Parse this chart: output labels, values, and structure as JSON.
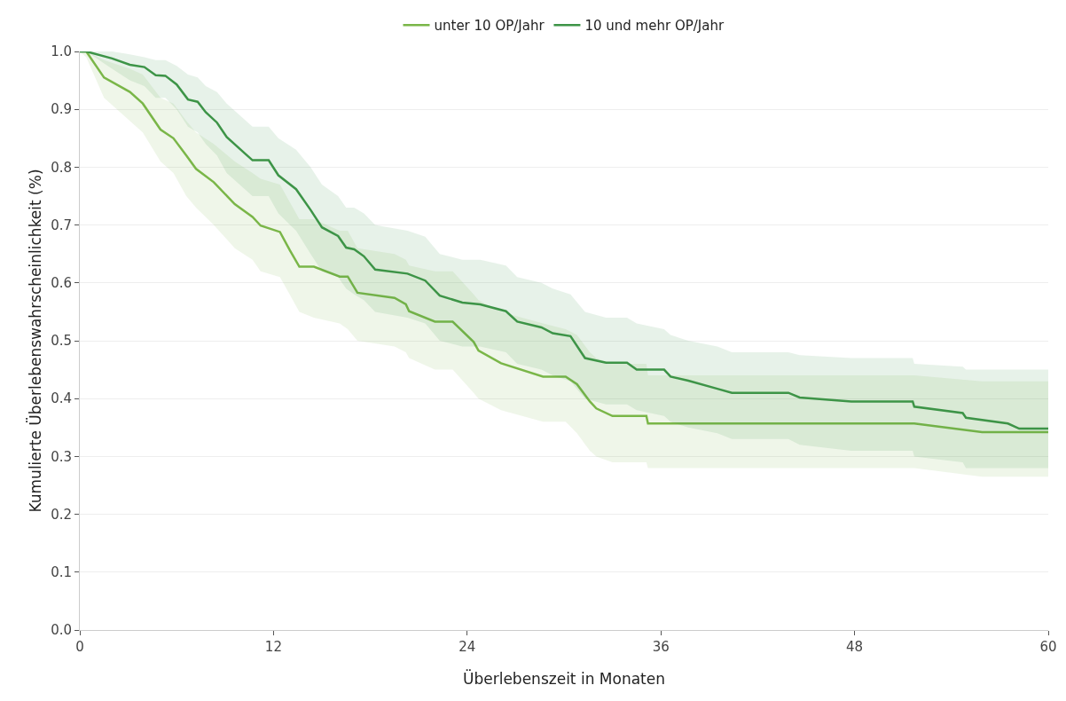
{
  "chart_data": {
    "type": "line",
    "xlabel": "Überlebenszeit in Monaten",
    "ylabel": "Kumulierte Überlebenswahrscheinlichkeit (%)",
    "xlim": [
      0,
      60
    ],
    "xticks": [
      0,
      12,
      24,
      36,
      48,
      60
    ],
    "ylim": [
      0,
      1.0
    ],
    "yticks": [
      {
        "value": 0,
        "label": "0.0"
      },
      {
        "value": 0.1,
        "label": "0.1"
      },
      {
        "value": 0.2,
        "label": "0.2"
      },
      {
        "value": 0.3,
        "label": "0.3"
      },
      {
        "value": 0.4,
        "label": "0.4"
      },
      {
        "value": 0.5,
        "label": "0.5"
      },
      {
        "value": 0.6,
        "label": "0.6"
      },
      {
        "value": 0.7,
        "label": "0.7"
      },
      {
        "value": 0.8,
        "label": "0.8"
      },
      {
        "value": 0.9,
        "label": "0.9"
      },
      {
        "value": 1.0,
        "label": "1.0"
      }
    ],
    "grid": "y",
    "legend": "top",
    "marker": "none",
    "line_style": "solid",
    "series": [
      {
        "name": "unter 10 OP/Jahr",
        "color": "#7ab648",
        "x": [
          0,
          0.4,
          1.5,
          3.1,
          3.9,
          5.0,
          5.8,
          6.6,
          7.2,
          8.3,
          9.6,
          10.7,
          11.2,
          12.4,
          13.0,
          13.6,
          14.5,
          16.1,
          16.6,
          17.2,
          19.5,
          20.2,
          20.4,
          22.0,
          23.1,
          24.4,
          24.7,
          26.1,
          28.7,
          30.1,
          30.8,
          31.6,
          32.0,
          33.0,
          35.1,
          35.2,
          51.7,
          55.9,
          60
        ],
        "values": [
          1.0,
          1.0,
          0.955,
          0.93,
          0.91,
          0.865,
          0.85,
          0.82,
          0.797,
          0.774,
          0.736,
          0.714,
          0.699,
          0.688,
          0.657,
          0.628,
          0.628,
          0.611,
          0.611,
          0.583,
          0.574,
          0.563,
          0.551,
          0.533,
          0.533,
          0.498,
          0.483,
          0.461,
          0.438,
          0.438,
          0.425,
          0.395,
          0.383,
          0.37,
          0.37,
          0.357,
          0.357,
          0.342,
          0.342
        ],
        "lower": [
          1.0,
          0.99,
          0.92,
          0.88,
          0.86,
          0.81,
          0.79,
          0.75,
          0.73,
          0.7,
          0.66,
          0.64,
          0.62,
          0.61,
          0.58,
          0.55,
          0.54,
          0.53,
          0.52,
          0.5,
          0.49,
          0.48,
          0.47,
          0.45,
          0.45,
          0.41,
          0.4,
          0.38,
          0.36,
          0.36,
          0.34,
          0.31,
          0.3,
          0.29,
          0.29,
          0.28,
          0.28,
          0.265,
          0.265
        ],
        "upper": [
          1.0,
          1.0,
          0.985,
          0.97,
          0.96,
          0.92,
          0.91,
          0.88,
          0.86,
          0.84,
          0.81,
          0.79,
          0.78,
          0.77,
          0.74,
          0.71,
          0.71,
          0.69,
          0.69,
          0.66,
          0.65,
          0.64,
          0.63,
          0.62,
          0.62,
          0.58,
          0.57,
          0.55,
          0.53,
          0.52,
          0.51,
          0.48,
          0.47,
          0.46,
          0.46,
          0.44,
          0.44,
          0.43,
          0.43
        ]
      },
      {
        "name": "10 und mehr OP/Jahr",
        "color": "#3d9447",
        "x": [
          0,
          0.4,
          2.0,
          3.1,
          4.0,
          4.7,
          5.3,
          6.0,
          6.7,
          7.3,
          7.8,
          8.5,
          9.1,
          10.3,
          10.7,
          11.7,
          12.3,
          13.4,
          14.3,
          15.0,
          16.0,
          16.5,
          17.0,
          17.6,
          18.3,
          20.3,
          21.4,
          22.3,
          23.7,
          24.8,
          26.4,
          27.1,
          28.6,
          29.3,
          30.4,
          31.3,
          32.6,
          33.9,
          34.5,
          36.2,
          36.6,
          37.7,
          39.5,
          40.4,
          43.9,
          44.6,
          47.8,
          51.6,
          51.7,
          54.7,
          54.9,
          57.5,
          58.2,
          60
        ],
        "values": [
          1.0,
          1.0,
          0.988,
          0.977,
          0.973,
          0.959,
          0.958,
          0.943,
          0.917,
          0.913,
          0.895,
          0.877,
          0.852,
          0.822,
          0.812,
          0.812,
          0.786,
          0.762,
          0.726,
          0.696,
          0.681,
          0.661,
          0.658,
          0.646,
          0.623,
          0.616,
          0.604,
          0.578,
          0.566,
          0.563,
          0.551,
          0.533,
          0.523,
          0.513,
          0.508,
          0.47,
          0.462,
          0.462,
          0.45,
          0.45,
          0.438,
          0.431,
          0.417,
          0.41,
          0.41,
          0.402,
          0.395,
          0.395,
          0.386,
          0.375,
          0.367,
          0.357,
          0.348,
          0.348
        ],
        "lower": [
          1.0,
          1.0,
          0.97,
          0.95,
          0.94,
          0.92,
          0.92,
          0.9,
          0.87,
          0.86,
          0.84,
          0.82,
          0.79,
          0.76,
          0.75,
          0.75,
          0.72,
          0.69,
          0.65,
          0.62,
          0.61,
          0.59,
          0.58,
          0.57,
          0.55,
          0.54,
          0.53,
          0.5,
          0.49,
          0.49,
          0.48,
          0.46,
          0.45,
          0.44,
          0.43,
          0.4,
          0.39,
          0.39,
          0.38,
          0.37,
          0.36,
          0.35,
          0.34,
          0.33,
          0.33,
          0.32,
          0.31,
          0.31,
          0.3,
          0.29,
          0.28,
          0.28,
          0.28,
          0.28
        ],
        "upper": [
          1.0,
          1.0,
          1.0,
          0.995,
          0.99,
          0.985,
          0.985,
          0.975,
          0.96,
          0.955,
          0.94,
          0.93,
          0.91,
          0.88,
          0.87,
          0.87,
          0.85,
          0.83,
          0.8,
          0.77,
          0.75,
          0.73,
          0.73,
          0.72,
          0.7,
          0.69,
          0.68,
          0.65,
          0.64,
          0.64,
          0.63,
          0.61,
          0.6,
          0.59,
          0.58,
          0.55,
          0.54,
          0.54,
          0.53,
          0.52,
          0.51,
          0.5,
          0.49,
          0.48,
          0.48,
          0.475,
          0.47,
          0.47,
          0.46,
          0.455,
          0.45,
          0.45,
          0.45,
          0.45
        ]
      }
    ]
  }
}
